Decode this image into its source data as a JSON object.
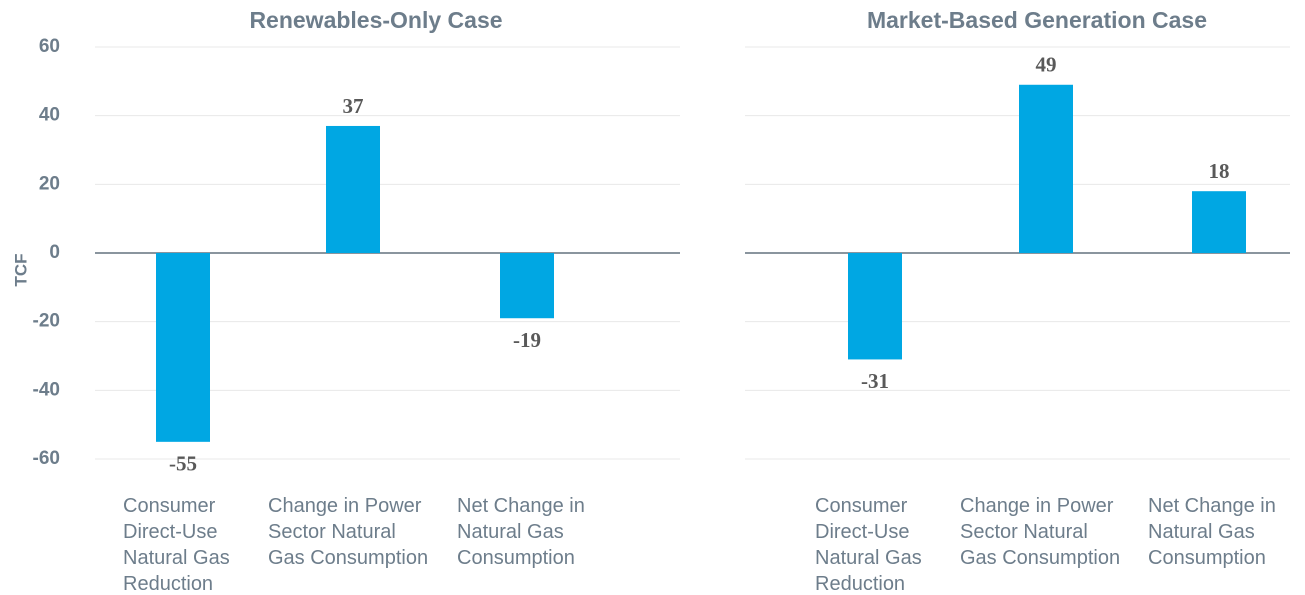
{
  "chart_data": [
    {
      "type": "bar",
      "title": "Renewables-Only Case",
      "ylabel": "TCF",
      "categories": [
        "Consumer Direct-Use Natural Gas Reduction",
        "Change in Power Sector Natural Gas Consumption",
        "Net Change in Natural Gas Consumption"
      ],
      "values": [
        -55,
        37,
        -19
      ],
      "color": "#00a7e3",
      "ylim": [
        -60,
        60
      ],
      "yticks": [
        -60,
        -40,
        -20,
        0,
        20,
        40,
        60
      ],
      "grid": true
    },
    {
      "type": "bar",
      "title": "Market-Based Generation Case",
      "categories": [
        "Consumer Direct-Use Natural Gas Reduction",
        "Change in Power Sector Natural Gas Consumption",
        "Net Change in Natural Gas Consumption"
      ],
      "values": [
        -31,
        49,
        18
      ],
      "color": "#00a7e3",
      "sharey": true,
      "grid": true
    }
  ]
}
